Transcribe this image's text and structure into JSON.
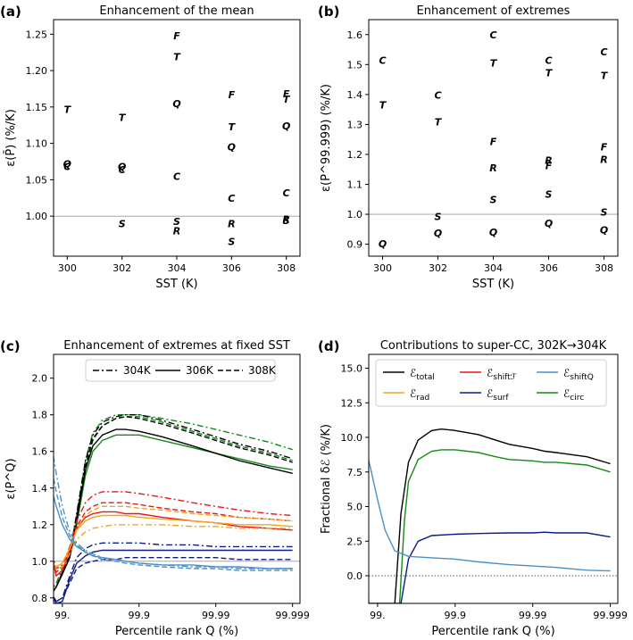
{
  "colors": {
    "F": "#e8151b",
    "T": "#000000",
    "Q": "#4a90c8",
    "C": "#138a16",
    "R": "#f2a51c",
    "S": "#0d1a8a",
    "ref": "#9a9a9a"
  },
  "chart_data": [
    {
      "id": "a",
      "tag": "(a)",
      "type": "scatter",
      "title": "Enhancement of the mean",
      "xlabel": "SST (K)",
      "ylabel": "ε(P̄) (%/K)",
      "xlim": [
        299.5,
        308.5
      ],
      "ylim": [
        0.945,
        1.27
      ],
      "xticks": [
        300,
        302,
        304,
        306,
        308
      ],
      "yticks": [
        1.0,
        1.05,
        1.1,
        1.15,
        1.2,
        1.25
      ],
      "ytick_labels": [
        "1.00",
        "1.05",
        "1.10",
        "1.15",
        "1.20",
        "1.25"
      ],
      "refline": 1.0,
      "series": [
        {
          "name": "F",
          "x": [
            304,
            306,
            308
          ],
          "y": [
            1.248,
            1.167,
            1.168
          ]
        },
        {
          "name": "T",
          "x": [
            300,
            302,
            304,
            306,
            308
          ],
          "y": [
            1.147,
            1.136,
            1.219,
            1.123,
            1.161
          ]
        },
        {
          "name": "Q",
          "x": [
            300,
            302,
            304,
            306,
            308
          ],
          "y": [
            1.072,
            1.068,
            1.155,
            1.095,
            1.124
          ]
        },
        {
          "name": "C",
          "x": [
            300,
            302,
            304,
            306,
            308
          ],
          "y": [
            1.068,
            1.064,
            1.055,
            1.025,
            1.032
          ]
        },
        {
          "name": "R",
          "x": [
            304,
            306,
            308
          ],
          "y": [
            0.98,
            0.99,
            0.996
          ]
        },
        {
          "name": "S",
          "x": [
            302,
            304,
            306,
            308
          ],
          "y": [
            0.99,
            0.993,
            0.965,
            0.994
          ]
        }
      ]
    },
    {
      "id": "b",
      "tag": "(b)",
      "type": "scatter",
      "title": "Enhancement of extremes",
      "xlabel": "SST (K)",
      "ylabel": "ε(P^99.999) (%/K)",
      "xlim": [
        299.5,
        308.5
      ],
      "ylim": [
        0.86,
        1.65
      ],
      "xticks": [
        300,
        302,
        304,
        306,
        308
      ],
      "yticks": [
        0.9,
        1.0,
        1.1,
        1.2,
        1.3,
        1.4,
        1.5,
        1.6
      ],
      "ytick_labels": [
        "0.9",
        "1.0",
        "1.1",
        "1.2",
        "1.3",
        "1.4",
        "1.5",
        "1.6"
      ],
      "refline": 1.0,
      "series": [
        {
          "name": "C",
          "x": [
            300,
            302,
            304,
            306,
            308
          ],
          "y": [
            1.515,
            1.398,
            1.6,
            1.515,
            1.542
          ]
        },
        {
          "name": "T",
          "x": [
            300,
            302,
            304,
            306,
            308
          ],
          "y": [
            1.365,
            1.308,
            1.505,
            1.473,
            1.464
          ]
        },
        {
          "name": "F",
          "x": [
            304,
            306,
            308
          ],
          "y": [
            1.243,
            1.163,
            1.225
          ]
        },
        {
          "name": "R",
          "x": [
            304,
            306,
            308
          ],
          "y": [
            1.155,
            1.18,
            1.183
          ]
        },
        {
          "name": "S",
          "x": [
            302,
            304,
            306,
            308
          ],
          "y": [
            0.993,
            1.05,
            1.067,
            1.008
          ]
        },
        {
          "name": "Q",
          "x": [
            300,
            302,
            304,
            306,
            308
          ],
          "y": [
            0.902,
            0.937,
            0.94,
            0.97,
            0.948
          ]
        }
      ]
    },
    {
      "id": "c",
      "tag": "(c)",
      "type": "line",
      "title": "Enhancement of extremes at fixed SST",
      "xlabel": "Percentile rank Q (%)",
      "ylabel": "ε(P^Q)",
      "ylim": [
        0.77,
        2.13
      ],
      "xticks": [
        99.0,
        99.9,
        99.99,
        99.999
      ],
      "xtick_labels": [
        "99.",
        "99.9",
        "99.99",
        "99.999"
      ],
      "yticks": [
        0.8,
        1.0,
        1.2,
        1.4,
        1.6,
        1.8,
        2.0
      ],
      "ytick_labels": [
        "0.8",
        "1.0",
        "1.2",
        "1.4",
        "1.6",
        "1.8",
        "2.0"
      ],
      "refline": 1.0,
      "legend": {
        "position": "top",
        "entries": [
          {
            "label": "304K",
            "dash": "dashdot"
          },
          {
            "label": "306K",
            "dash": "solid"
          },
          {
            "label": "308K",
            "dash": "dashed"
          }
        ]
      },
      "x": [
        98.5,
        98.8,
        99.0,
        99.2,
        99.35,
        99.5,
        99.6,
        99.7,
        99.8,
        99.85,
        99.9,
        99.95,
        99.98,
        99.99,
        99.995,
        99.998,
        99.999
      ],
      "series": [
        {
          "name": "C 304K",
          "color": "C",
          "dash": "dashdot",
          "y": [
            0.82,
            0.88,
            0.96,
            1.05,
            1.25,
            1.55,
            1.7,
            1.77,
            1.8,
            1.8,
            1.8,
            1.78,
            1.75,
            1.72,
            1.69,
            1.65,
            1.61
          ]
        },
        {
          "name": "C 306K",
          "color": "C",
          "dash": "solid",
          "y": [
            0.8,
            0.86,
            0.93,
            1.02,
            1.2,
            1.47,
            1.6,
            1.66,
            1.69,
            1.69,
            1.69,
            1.66,
            1.62,
            1.59,
            1.56,
            1.52,
            1.5
          ]
        },
        {
          "name": "C 308K",
          "color": "C",
          "dash": "dashed",
          "y": [
            0.8,
            0.86,
            0.94,
            1.03,
            1.22,
            1.5,
            1.66,
            1.74,
            1.78,
            1.79,
            1.79,
            1.76,
            1.71,
            1.67,
            1.63,
            1.59,
            1.55
          ]
        },
        {
          "name": "T 304K",
          "color": "T",
          "dash": "dashdot",
          "y": [
            0.8,
            0.86,
            0.94,
            1.04,
            1.26,
            1.55,
            1.69,
            1.76,
            1.79,
            1.8,
            1.8,
            1.77,
            1.72,
            1.68,
            1.64,
            1.6,
            1.56
          ]
        },
        {
          "name": "T 306K",
          "color": "T",
          "dash": "solid",
          "y": [
            0.8,
            0.86,
            0.93,
            1.02,
            1.22,
            1.5,
            1.63,
            1.69,
            1.72,
            1.72,
            1.71,
            1.68,
            1.63,
            1.59,
            1.55,
            1.51,
            1.48
          ]
        },
        {
          "name": "T 308K",
          "color": "T",
          "dash": "dashed",
          "y": [
            0.8,
            0.86,
            0.94,
            1.03,
            1.24,
            1.52,
            1.67,
            1.74,
            1.78,
            1.79,
            1.78,
            1.75,
            1.7,
            1.66,
            1.62,
            1.58,
            1.54
          ]
        },
        {
          "name": "F 304K",
          "color": "F",
          "dash": "dashdot",
          "y": [
            1.12,
            0.96,
            0.98,
            1.08,
            1.22,
            1.32,
            1.36,
            1.38,
            1.38,
            1.38,
            1.37,
            1.35,
            1.32,
            1.3,
            1.28,
            1.26,
            1.25
          ]
        },
        {
          "name": "F 306K",
          "color": "F",
          "dash": "solid",
          "y": [
            1.1,
            0.92,
            0.95,
            1.05,
            1.18,
            1.24,
            1.26,
            1.27,
            1.27,
            1.26,
            1.26,
            1.24,
            1.22,
            1.21,
            1.19,
            1.18,
            1.17
          ]
        },
        {
          "name": "F 308K",
          "color": "F",
          "dash": "dashed",
          "y": [
            1.08,
            0.94,
            0.97,
            1.06,
            1.19,
            1.27,
            1.3,
            1.32,
            1.32,
            1.32,
            1.31,
            1.29,
            1.27,
            1.26,
            1.24,
            1.23,
            1.22
          ]
        },
        {
          "name": "R 304K",
          "color": "R",
          "dash": "dashdot",
          "y": [
            1.0,
            0.96,
            0.97,
            1.04,
            1.12,
            1.16,
            1.18,
            1.19,
            1.2,
            1.2,
            1.2,
            1.2,
            1.19,
            1.19,
            1.18,
            1.18,
            1.18
          ]
        },
        {
          "name": "R 306K",
          "color": "R",
          "dash": "solid",
          "y": [
            1.01,
            0.97,
            0.99,
            1.07,
            1.17,
            1.22,
            1.24,
            1.25,
            1.25,
            1.25,
            1.24,
            1.23,
            1.22,
            1.21,
            1.2,
            1.2,
            1.19
          ]
        },
        {
          "name": "R 308K",
          "color": "R",
          "dash": "dashed",
          "y": [
            1.0,
            0.97,
            0.99,
            1.07,
            1.18,
            1.25,
            1.28,
            1.3,
            1.3,
            1.3,
            1.29,
            1.28,
            1.26,
            1.25,
            1.24,
            1.23,
            1.22
          ]
        },
        {
          "name": "S 304K",
          "color": "S",
          "dash": "dashdot",
          "y": [
            0.86,
            0.78,
            0.8,
            0.92,
            1.02,
            1.07,
            1.09,
            1.1,
            1.1,
            1.1,
            1.1,
            1.09,
            1.09,
            1.08,
            1.08,
            1.08,
            1.08
          ]
        },
        {
          "name": "S 306K",
          "color": "S",
          "dash": "solid",
          "y": [
            0.84,
            0.77,
            0.78,
            0.9,
            0.99,
            1.03,
            1.05,
            1.06,
            1.06,
            1.06,
            1.06,
            1.06,
            1.06,
            1.06,
            1.06,
            1.06,
            1.06
          ]
        },
        {
          "name": "S 308K",
          "color": "S",
          "dash": "dashed",
          "y": [
            0.85,
            0.78,
            0.8,
            0.88,
            0.96,
            0.99,
            1.0,
            1.01,
            1.01,
            1.02,
            1.02,
            1.02,
            1.02,
            1.02,
            1.01,
            1.01,
            1.01
          ]
        },
        {
          "name": "Q 304K",
          "color": "Q",
          "dash": "dashdot",
          "y": [
            1.72,
            1.48,
            1.3,
            1.16,
            1.1,
            1.06,
            1.04,
            1.02,
            1.01,
            1.0,
            0.99,
            0.98,
            0.97,
            0.97,
            0.96,
            0.96,
            0.96
          ]
        },
        {
          "name": "Q 306K",
          "color": "Q",
          "dash": "solid",
          "y": [
            1.45,
            1.3,
            1.2,
            1.12,
            1.08,
            1.05,
            1.03,
            1.02,
            1.01,
            1.0,
            0.99,
            0.98,
            0.98,
            0.97,
            0.97,
            0.96,
            0.96
          ]
        },
        {
          "name": "Q 308K",
          "color": "Q",
          "dash": "dashed",
          "y": [
            1.58,
            1.38,
            1.24,
            1.14,
            1.09,
            1.05,
            1.03,
            1.01,
            1.0,
            0.99,
            0.98,
            0.97,
            0.96,
            0.96,
            0.95,
            0.95,
            0.95
          ]
        }
      ]
    },
    {
      "id": "d",
      "tag": "(d)",
      "type": "line",
      "title": "Contributions to super-CC, 302K→304K",
      "xlabel": "Percentile rank Q (%)",
      "ylabel": "Fractional δℰ (%/K)",
      "ylim": [
        -2.0,
        16.0
      ],
      "xticks": [
        99.0,
        99.9,
        99.99,
        99.999
      ],
      "xtick_labels": [
        "99.",
        "99.9",
        "99.99",
        "99.999"
      ],
      "yticks": [
        0.0,
        2.5,
        5.0,
        7.5,
        10.0,
        12.5,
        15.0
      ],
      "ytick_labels": [
        "0.0",
        "2.5",
        "5.0",
        "7.5",
        "10.0",
        "12.5",
        "15.0"
      ],
      "refline": 0.0,
      "legend": {
        "position": "top",
        "entries": [
          {
            "label": "ℰ",
            "sub": "total",
            "color": "T"
          },
          {
            "label": "ℰ",
            "sub": "shiftℱ",
            "color": "F"
          },
          {
            "label": "ℰ",
            "sub": "shiftQ",
            "color": "Q"
          },
          {
            "label": "ℰ",
            "sub": "rad",
            "color": "R"
          },
          {
            "label": "ℰ",
            "sub": "surf",
            "color": "S"
          },
          {
            "label": "ℰ",
            "sub": "circ",
            "color": "C"
          }
        ]
      },
      "series": [
        {
          "name": "total",
          "color": "T",
          "x": [
            99.4,
            99.5,
            99.6,
            99.7,
            99.8,
            99.85,
            99.9,
            99.95,
            99.97,
            99.98,
            99.99,
            99.993,
            99.995,
            99.998,
            99.999
          ],
          "y": [
            -2.0,
            4.5,
            8.2,
            9.8,
            10.5,
            10.6,
            10.5,
            10.2,
            9.8,
            9.5,
            9.2,
            9.0,
            8.9,
            8.6,
            8.1
          ]
        },
        {
          "name": "circ",
          "color": "C",
          "x": [
            99.48,
            99.55,
            99.6,
            99.7,
            99.8,
            99.85,
            99.9,
            99.95,
            99.97,
            99.98,
            99.99,
            99.993,
            99.995,
            99.998,
            99.999
          ],
          "y": [
            -2.0,
            4.0,
            6.8,
            8.4,
            9.0,
            9.1,
            9.1,
            8.9,
            8.6,
            8.4,
            8.3,
            8.2,
            8.2,
            8.0,
            7.5
          ]
        },
        {
          "name": "surf",
          "color": "S",
          "x": [
            98.2,
            98.5,
            98.7,
            99.5,
            99.6,
            99.7,
            99.8,
            99.9,
            99.95,
            99.98,
            99.99,
            99.993,
            99.995,
            99.998,
            99.999
          ],
          "y": [
            15.5,
            8.0,
            -2.0,
            -2.0,
            1.2,
            2.5,
            2.9,
            3.0,
            3.05,
            3.1,
            3.1,
            3.15,
            3.1,
            3.1,
            2.8
          ]
        },
        {
          "name": "shiftQ",
          "color": "Q",
          "x": [
            98.0,
            98.4,
            98.8,
            99.0,
            99.2,
            99.4,
            99.6,
            99.8,
            99.9,
            99.95,
            99.98,
            99.99,
            99.995,
            99.998,
            99.999
          ],
          "y": [
            12.6,
            10.5,
            7.5,
            5.5,
            3.3,
            1.8,
            1.4,
            1.3,
            1.2,
            1.0,
            0.8,
            0.7,
            0.6,
            0.4,
            0.35
          ]
        }
      ]
    }
  ]
}
